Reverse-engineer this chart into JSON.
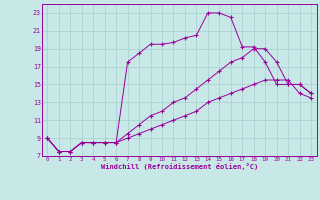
{
  "xlabel": "Windchill (Refroidissement éolien,°C)",
  "x_values": [
    0,
    1,
    2,
    3,
    4,
    5,
    6,
    7,
    8,
    9,
    10,
    11,
    12,
    13,
    14,
    15,
    16,
    17,
    18,
    19,
    20,
    21,
    22,
    23
  ],
  "line1": [
    9,
    7.5,
    7.5,
    8.5,
    8.5,
    8.5,
    8.5,
    17.5,
    18.5,
    19.5,
    19.5,
    19.7,
    20.2,
    20.5,
    23,
    23,
    22.5,
    19.2,
    19.2,
    17.5,
    15,
    15,
    15,
    14
  ],
  "line2": [
    9,
    7.5,
    7.5,
    8.5,
    8.5,
    8.5,
    8.5,
    9.5,
    10.5,
    11.5,
    12,
    13,
    13.5,
    14.5,
    15.5,
    16.5,
    17.5,
    18,
    19,
    19,
    17.5,
    15,
    15,
    14
  ],
  "line3": [
    9,
    7.5,
    7.5,
    8.5,
    8.5,
    8.5,
    8.5,
    9,
    9.5,
    10,
    10.5,
    11,
    11.5,
    12,
    13,
    13.5,
    14,
    14.5,
    15,
    15.5,
    15.5,
    15.5,
    14,
    13.5
  ],
  "color": "#990099",
  "bg_color": "#c8e8e8",
  "grid_color": "#a8cccc",
  "ylim": [
    7,
    24
  ],
  "xlim": [
    -0.5,
    23.5
  ],
  "yticks": [
    7,
    9,
    11,
    13,
    15,
    17,
    19,
    21,
    23
  ],
  "xticks": [
    0,
    1,
    2,
    3,
    4,
    5,
    6,
    7,
    8,
    9,
    10,
    11,
    12,
    13,
    14,
    15,
    16,
    17,
    18,
    19,
    20,
    21,
    22,
    23
  ]
}
